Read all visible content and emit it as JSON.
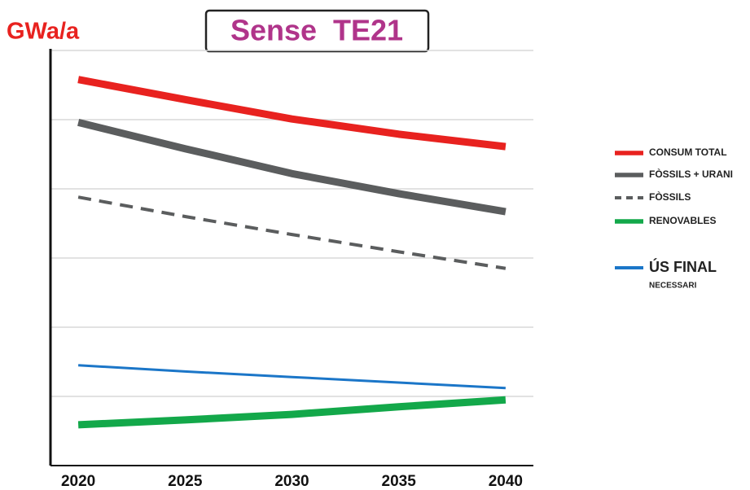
{
  "chart_data": {
    "type": "line",
    "title": "Sense  TE21",
    "y_label": "GWa/a",
    "x": [
      2020,
      2025,
      2030,
      2035,
      2040
    ],
    "xlim": [
      2018.7,
      2041.3
    ],
    "xticks": [
      2020,
      2025,
      2030,
      2035,
      2040
    ],
    "ylim": [
      0,
      6
    ],
    "yticks": [
      1,
      2,
      3,
      4,
      5,
      6
    ],
    "grid": true,
    "legend": "right",
    "series": [
      {
        "name": "CONSUM TOTAL",
        "color": "#e8221f",
        "width": 9,
        "dashed": false,
        "values": [
          5.58,
          5.29,
          5.01,
          4.79,
          4.61
        ]
      },
      {
        "name": "FÒSSILS + URANI",
        "color": "#5b5d5e",
        "width": 9,
        "dashed": false,
        "values": [
          4.96,
          4.58,
          4.22,
          3.93,
          3.67
        ]
      },
      {
        "name": "FÒSSILS",
        "color": "#5b5d5e",
        "width": 4,
        "dashed": true,
        "values": [
          3.88,
          3.6,
          3.34,
          3.09,
          2.85
        ]
      },
      {
        "name": "RENOVABLES",
        "color": "#13a84a",
        "width": 9,
        "dashed": false,
        "values": [
          0.59,
          0.66,
          0.74,
          0.85,
          0.95
        ]
      },
      {
        "name": "ÚS FINAL",
        "name_sub": "NECESSARI",
        "color": "#1b76c8",
        "width": 3,
        "dashed": false,
        "values": [
          1.45,
          1.36,
          1.28,
          1.2,
          1.12
        ]
      }
    ]
  }
}
